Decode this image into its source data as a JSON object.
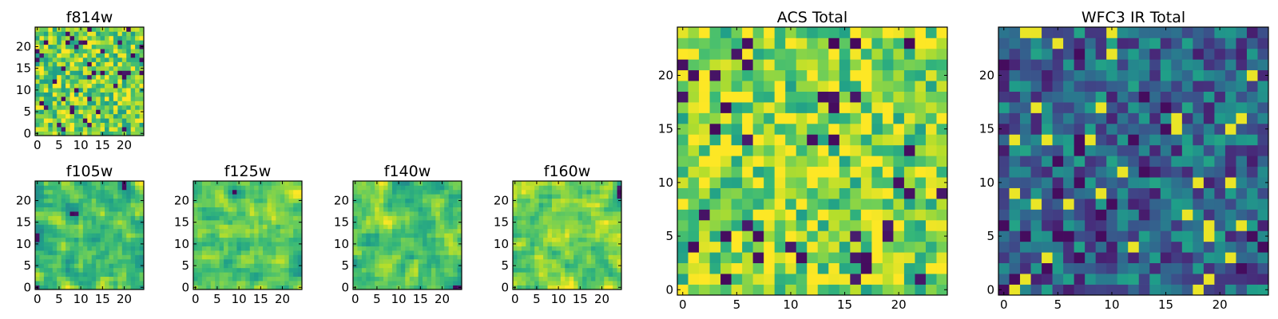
{
  "chart_data": [
    {
      "type": "heatmap",
      "title": "f814w",
      "xticks": [
        "0",
        "5",
        "10",
        "15",
        "20"
      ],
      "yticks": [
        "0",
        "5",
        "10",
        "15",
        "20"
      ],
      "xlim": [
        -0.5,
        24.5
      ],
      "ylim": [
        -0.5,
        24.5
      ],
      "grid_size": 25,
      "colormap": "viridis",
      "value_range": [
        0,
        1
      ],
      "seed": 11,
      "style": "noise",
      "bias": 0.78
    },
    {
      "type": "heatmap",
      "title": "f105w",
      "xticks": [
        "0",
        "5",
        "10",
        "15",
        "20"
      ],
      "yticks": [
        "0",
        "5",
        "10",
        "15",
        "20"
      ],
      "xlim": [
        -0.5,
        24.5
      ],
      "ylim": [
        -0.5,
        24.5
      ],
      "grid_size": 25,
      "colormap": "viridis",
      "value_range": [
        0,
        1
      ],
      "seed": 23,
      "style": "smooth",
      "bias": 0.72
    },
    {
      "type": "heatmap",
      "title": "f125w",
      "xticks": [
        "0",
        "5",
        "10",
        "15",
        "20"
      ],
      "yticks": [
        "0",
        "5",
        "10",
        "15",
        "20"
      ],
      "xlim": [
        -0.5,
        24.5
      ],
      "ylim": [
        -0.5,
        24.5
      ],
      "grid_size": 25,
      "colormap": "viridis",
      "value_range": [
        0,
        1
      ],
      "seed": 37,
      "style": "smooth",
      "bias": 0.74
    },
    {
      "type": "heatmap",
      "title": "f140w",
      "xticks": [
        "0",
        "5",
        "10",
        "15",
        "20"
      ],
      "yticks": [
        "0",
        "5",
        "10",
        "15",
        "20"
      ],
      "xlim": [
        -0.5,
        24.5
      ],
      "ylim": [
        -0.5,
        24.5
      ],
      "grid_size": 25,
      "colormap": "viridis",
      "value_range": [
        0,
        1
      ],
      "seed": 41,
      "style": "smooth",
      "bias": 0.72
    },
    {
      "type": "heatmap",
      "title": "f160w",
      "xticks": [
        "0",
        "5",
        "10",
        "15",
        "20"
      ],
      "yticks": [
        "0",
        "5",
        "10",
        "15",
        "20"
      ],
      "xlim": [
        -0.5,
        24.5
      ],
      "ylim": [
        -0.5,
        24.5
      ],
      "grid_size": 25,
      "colormap": "viridis",
      "value_range": [
        0,
        1
      ],
      "seed": 53,
      "style": "smooth",
      "bias": 0.78
    },
    {
      "type": "heatmap",
      "title": "ACS Total",
      "xticks": [
        "0",
        "5",
        "10",
        "15",
        "20"
      ],
      "yticks": [
        "0",
        "5",
        "10",
        "15",
        "20"
      ],
      "xlim": [
        -0.5,
        24.5
      ],
      "ylim": [
        -0.5,
        24.5
      ],
      "grid_size": 25,
      "colormap": "viridis",
      "value_range": [
        0,
        1
      ],
      "seed": 67,
      "style": "noise",
      "bias": 0.8
    },
    {
      "type": "heatmap",
      "title": "WFC3 IR Total",
      "xticks": [
        "0",
        "5",
        "10",
        "15",
        "20"
      ],
      "yticks": [
        "0",
        "5",
        "10",
        "15",
        "20"
      ],
      "xlim": [
        -0.5,
        24.5
      ],
      "ylim": [
        -0.5,
        24.5
      ],
      "grid_size": 25,
      "colormap": "viridis",
      "value_range": [
        0,
        1
      ],
      "seed": 79,
      "style": "noise",
      "bias": 0.33
    }
  ]
}
